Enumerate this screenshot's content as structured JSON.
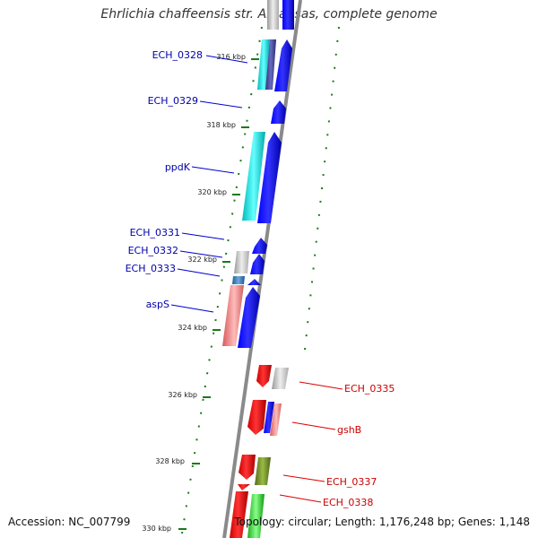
{
  "title": "Ehrlichia chaffeensis str. Arkansas, complete genome",
  "footer": {
    "accession": "Accession: NC_007799",
    "summary": "Topology: circular; Length: 1,176,248 bp; Genes: 1,148"
  },
  "ticks": [
    "316 kbp",
    "318 kbp",
    "320 kbp",
    "322 kbp",
    "324 kbp",
    "326 kbp",
    "328 kbp",
    "330 kbp"
  ],
  "left_labels": [
    "ECH_0328",
    "ECH_0329",
    "ppdK",
    "ECH_0331",
    "ECH_0332",
    "ECH_0333",
    "aspS"
  ],
  "right_labels": [
    "ECH_0335",
    "gshB",
    "ECH_0337",
    "ECH_0338"
  ],
  "colors": {
    "forward_strand": "#0000ee",
    "reverse_strand": "#ee0000",
    "left_label": "#0000aa",
    "right_label": "#cc0000",
    "backbone": "#808080",
    "ticks": "#1a7a1a"
  }
}
